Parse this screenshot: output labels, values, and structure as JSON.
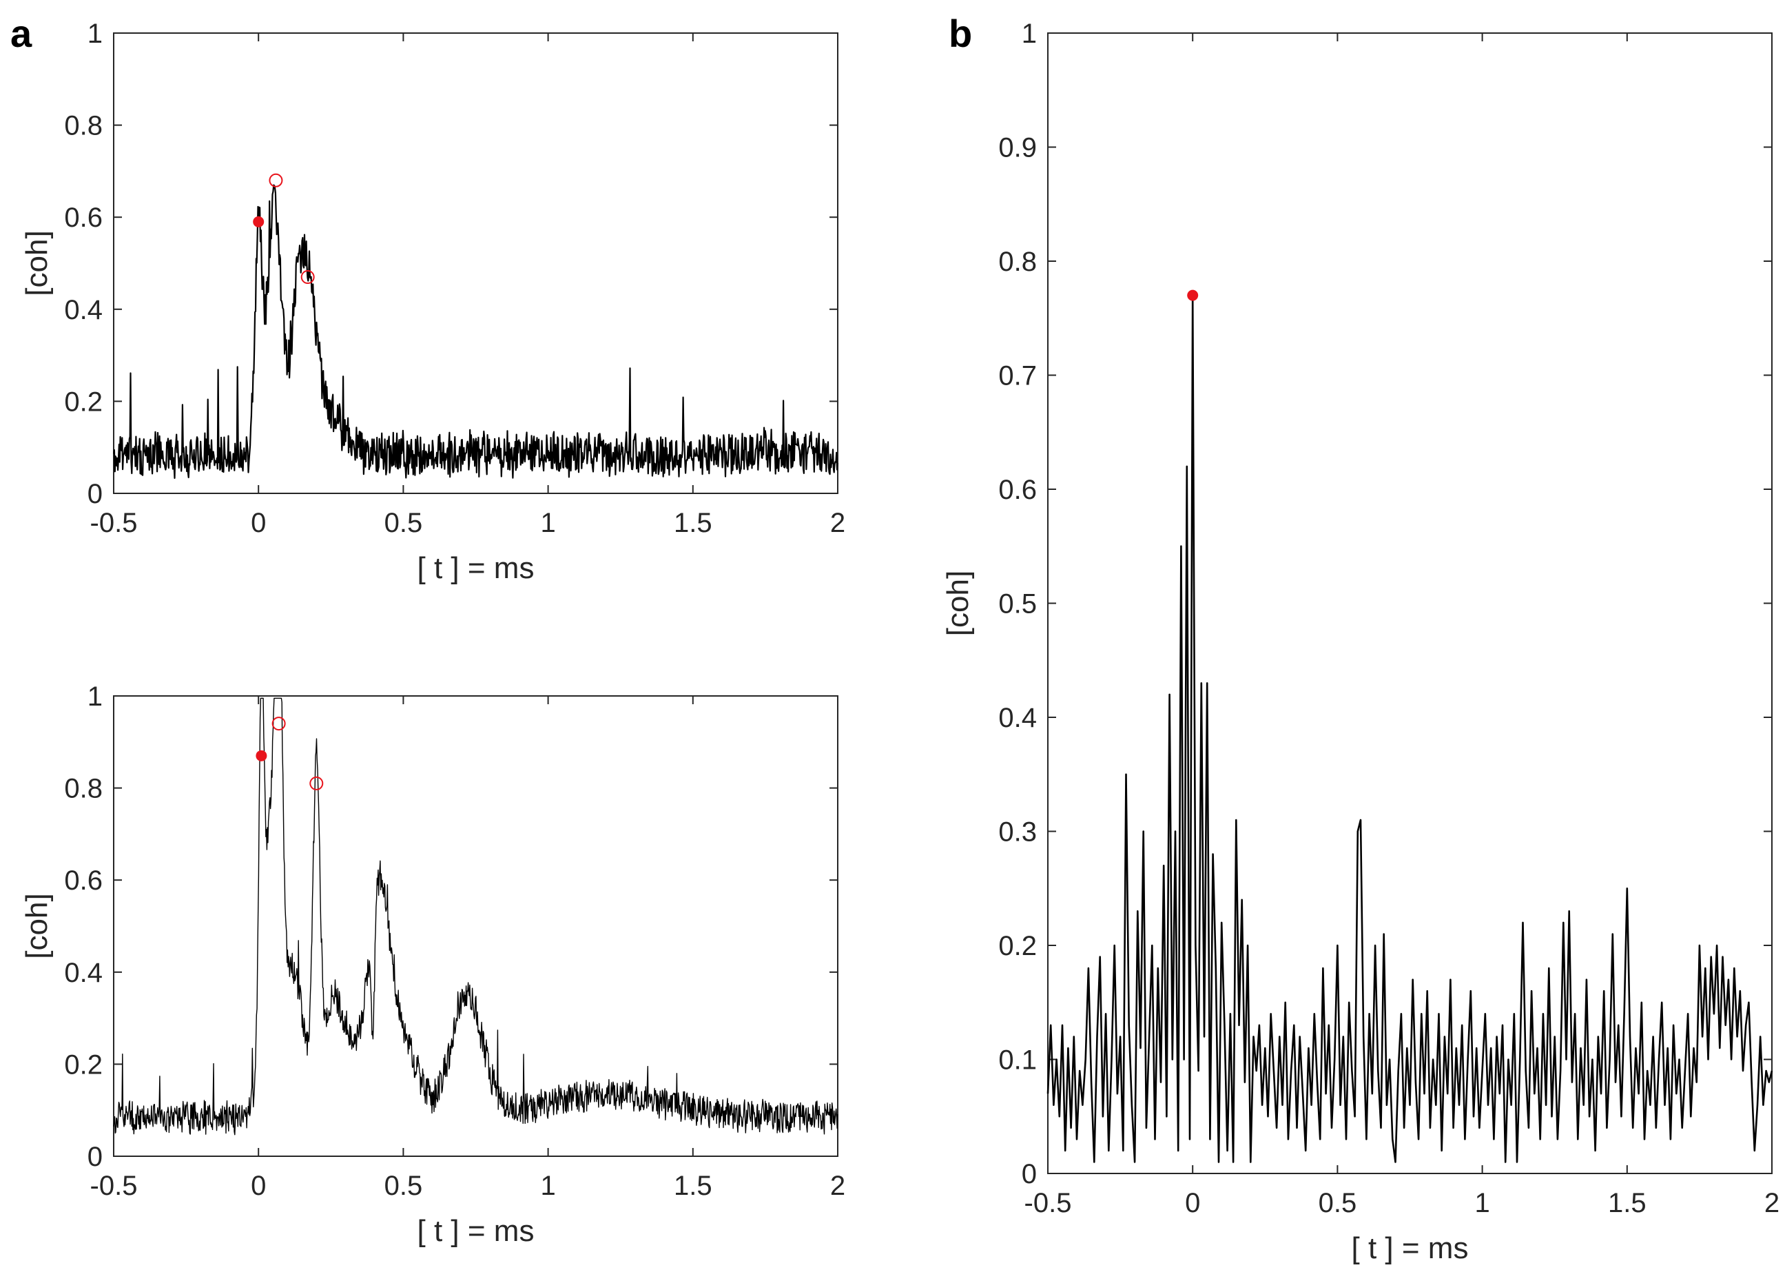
{
  "panels": {
    "a": "a",
    "b": "b"
  },
  "chart_data": [
    {
      "id": "a-top",
      "panel": "a",
      "type": "line",
      "title": "",
      "xlabel": "[ t ] = ms",
      "ylabel": "[coh]",
      "xlim": [
        -0.5,
        2
      ],
      "ylim": [
        0,
        1
      ],
      "xticks": [
        -0.5,
        0,
        0.5,
        1,
        1.5,
        2
      ],
      "xticklabels": [
        "-0.5",
        "0",
        "0.5",
        "1",
        "1.5",
        "2"
      ],
      "yticks": [
        0,
        0.2,
        0.4,
        0.6,
        0.8,
        1
      ],
      "yticklabels": [
        "0",
        "0.2",
        "0.4",
        "0.6",
        "0.8",
        "1"
      ],
      "grid": false,
      "colors": {
        "line": "#000000",
        "marker": "#e8141c"
      },
      "signal": {
        "t_start": -0.5,
        "t_end": 2,
        "n": 1200,
        "baseline": 0.085,
        "noise": 0.055,
        "spike_prob": 0.012,
        "spike_amp": 0.14,
        "seed": 11,
        "peaks": [
          {
            "t": 0.0,
            "amp": 0.48,
            "width": 0.012
          },
          {
            "t": 0.055,
            "amp": 0.55,
            "width": 0.025
          },
          {
            "t": 0.13,
            "amp": 0.24,
            "width": 0.02
          },
          {
            "t": 0.17,
            "amp": 0.35,
            "width": 0.028
          },
          {
            "t": 0.24,
            "amp": 0.09,
            "width": 0.05
          }
        ]
      },
      "markers": [
        {
          "t": 0.0,
          "value": 0.59,
          "filled": true
        },
        {
          "t": 0.06,
          "value": 0.68,
          "filled": false
        },
        {
          "t": 0.17,
          "value": 0.47,
          "filled": false
        }
      ]
    },
    {
      "id": "a-bottom",
      "panel": "a",
      "type": "line",
      "title": "",
      "xlabel": "[ t ] = ms",
      "ylabel": "[coh]",
      "xlim": [
        -0.5,
        2
      ],
      "ylim": [
        0,
        1
      ],
      "xticks": [
        -0.5,
        0,
        0.5,
        1,
        1.5,
        2
      ],
      "xticklabels": [
        "-0.5",
        "0",
        "0.5",
        "1",
        "1.5",
        "2"
      ],
      "yticks": [
        0,
        0.2,
        0.4,
        0.6,
        0.8,
        1
      ],
      "yticklabels": [
        "0",
        "0.2",
        "0.4",
        "0.6",
        "0.8",
        "1"
      ],
      "grid": false,
      "colors": {
        "line": "#000000",
        "marker": "#e8141c"
      },
      "signal": {
        "t_start": -0.5,
        "t_end": 2,
        "n": 1400,
        "baseline": 0.085,
        "noise": 0.04,
        "spike_prob": 0.008,
        "spike_amp": 0.1,
        "seed": 23,
        "peaks": [
          {
            "t": 0.01,
            "amp": 0.72,
            "width": 0.008
          },
          {
            "t": 0.04,
            "amp": 0.62,
            "width": 0.025
          },
          {
            "t": 0.07,
            "amp": 0.82,
            "width": 0.012
          },
          {
            "t": 0.12,
            "amp": 0.32,
            "width": 0.035
          },
          {
            "t": 0.2,
            "amp": 0.68,
            "width": 0.012
          },
          {
            "t": 0.26,
            "amp": 0.25,
            "width": 0.04
          },
          {
            "t": 0.35,
            "amp": 0.12,
            "width": 0.04
          },
          {
            "t": 0.42,
            "amp": 0.45,
            "width": 0.035
          },
          {
            "t": 0.5,
            "amp": 0.16,
            "width": 0.05
          },
          {
            "t": 0.72,
            "amp": 0.26,
            "width": 0.055
          },
          {
            "t": 1.2,
            "amp": 0.05,
            "width": 0.2
          }
        ],
        "dips": [
          {
            "t": 0.395,
            "depth": 0.25,
            "width": 0.006
          }
        ]
      },
      "markers": [
        {
          "t": 0.01,
          "value": 0.87,
          "filled": true
        },
        {
          "t": 0.07,
          "value": 0.94,
          "filled": false
        },
        {
          "t": 0.2,
          "value": 0.81,
          "filled": false
        }
      ]
    },
    {
      "id": "b",
      "panel": "b",
      "type": "line",
      "title": "",
      "xlabel": "[ t ] = ms",
      "ylabel": "[coh]",
      "xlim": [
        -0.5,
        2
      ],
      "ylim": [
        0,
        1
      ],
      "xticks": [
        -0.5,
        0,
        0.5,
        1,
        1.5,
        2
      ],
      "xticklabels": [
        "-0.5",
        "0",
        "0.5",
        "1",
        "1.5",
        "2"
      ],
      "yticks": [
        0,
        0.1,
        0.2,
        0.3,
        0.4,
        0.5,
        0.6,
        0.7,
        0.8,
        0.9,
        1
      ],
      "yticklabels": [
        "0",
        "0.1",
        "0.2",
        "0.3",
        "0.4",
        "0.5",
        "0.6",
        "0.7",
        "0.8",
        "0.9",
        "1"
      ],
      "grid": false,
      "colors": {
        "line": "#000000",
        "marker": "#e8141c"
      },
      "points": [
        [
          -0.5,
          0.07
        ],
        [
          -0.49,
          0.13
        ],
        [
          -0.48,
          0.06
        ],
        [
          -0.47,
          0.1
        ],
        [
          -0.46,
          0.05
        ],
        [
          -0.45,
          0.13
        ],
        [
          -0.44,
          0.02
        ],
        [
          -0.43,
          0.11
        ],
        [
          -0.42,
          0.04
        ],
        [
          -0.41,
          0.12
        ],
        [
          -0.4,
          0.03
        ],
        [
          -0.39,
          0.09
        ],
        [
          -0.38,
          0.06
        ],
        [
          -0.37,
          0.1
        ],
        [
          -0.36,
          0.18
        ],
        [
          -0.35,
          0.08
        ],
        [
          -0.34,
          0.01
        ],
        [
          -0.33,
          0.12
        ],
        [
          -0.32,
          0.19
        ],
        [
          -0.31,
          0.05
        ],
        [
          -0.3,
          0.14
        ],
        [
          -0.29,
          0.02
        ],
        [
          -0.28,
          0.1
        ],
        [
          -0.27,
          0.2
        ],
        [
          -0.26,
          0.07
        ],
        [
          -0.25,
          0.12
        ],
        [
          -0.24,
          0.02
        ],
        [
          -0.23,
          0.35
        ],
        [
          -0.22,
          0.13
        ],
        [
          -0.21,
          0.06
        ],
        [
          -0.2,
          0.01
        ],
        [
          -0.19,
          0.23
        ],
        [
          -0.18,
          0.11
        ],
        [
          -0.17,
          0.3
        ],
        [
          -0.16,
          0.04
        ],
        [
          -0.15,
          0.12
        ],
        [
          -0.14,
          0.2
        ],
        [
          -0.13,
          0.03
        ],
        [
          -0.12,
          0.18
        ],
        [
          -0.11,
          0.08
        ],
        [
          -0.1,
          0.27
        ],
        [
          -0.09,
          0.05
        ],
        [
          -0.08,
          0.42
        ],
        [
          -0.07,
          0.1
        ],
        [
          -0.06,
          0.3
        ],
        [
          -0.05,
          0.02
        ],
        [
          -0.04,
          0.55
        ],
        [
          -0.03,
          0.1
        ],
        [
          -0.02,
          0.62
        ],
        [
          -0.01,
          0.03
        ],
        [
          0.0,
          0.77
        ],
        [
          0.01,
          0.2
        ],
        [
          0.02,
          0.09
        ],
        [
          0.03,
          0.43
        ],
        [
          0.04,
          0.12
        ],
        [
          0.05,
          0.43
        ],
        [
          0.06,
          0.03
        ],
        [
          0.07,
          0.28
        ],
        [
          0.08,
          0.18
        ],
        [
          0.09,
          0.01
        ],
        [
          0.1,
          0.22
        ],
        [
          0.11,
          0.13
        ],
        [
          0.12,
          0.02
        ],
        [
          0.13,
          0.14
        ],
        [
          0.14,
          0.01
        ],
        [
          0.15,
          0.31
        ],
        [
          0.16,
          0.13
        ],
        [
          0.17,
          0.24
        ],
        [
          0.18,
          0.08
        ],
        [
          0.19,
          0.2
        ],
        [
          0.2,
          0.01
        ],
        [
          0.21,
          0.12
        ],
        [
          0.22,
          0.09
        ],
        [
          0.23,
          0.13
        ],
        [
          0.24,
          0.06
        ],
        [
          0.25,
          0.11
        ],
        [
          0.26,
          0.05
        ],
        [
          0.27,
          0.14
        ],
        [
          0.28,
          0.09
        ],
        [
          0.29,
          0.04
        ],
        [
          0.3,
          0.12
        ],
        [
          0.31,
          0.06
        ],
        [
          0.32,
          0.15
        ],
        [
          0.33,
          0.03
        ],
        [
          0.34,
          0.09
        ],
        [
          0.35,
          0.13
        ],
        [
          0.36,
          0.04
        ],
        [
          0.37,
          0.12
        ],
        [
          0.38,
          0.07
        ],
        [
          0.39,
          0.02
        ],
        [
          0.4,
          0.11
        ],
        [
          0.41,
          0.06
        ],
        [
          0.42,
          0.14
        ],
        [
          0.43,
          0.08
        ],
        [
          0.44,
          0.03
        ],
        [
          0.45,
          0.18
        ],
        [
          0.46,
          0.07
        ],
        [
          0.47,
          0.13
        ],
        [
          0.48,
          0.04
        ],
        [
          0.49,
          0.1
        ],
        [
          0.5,
          0.2
        ],
        [
          0.51,
          0.06
        ],
        [
          0.52,
          0.12
        ],
        [
          0.53,
          0.03
        ],
        [
          0.54,
          0.15
        ],
        [
          0.55,
          0.09
        ],
        [
          0.56,
          0.05
        ],
        [
          0.57,
          0.3
        ],
        [
          0.58,
          0.31
        ],
        [
          0.59,
          0.12
        ],
        [
          0.6,
          0.03
        ],
        [
          0.61,
          0.14
        ],
        [
          0.62,
          0.07
        ],
        [
          0.63,
          0.2
        ],
        [
          0.64,
          0.09
        ],
        [
          0.65,
          0.04
        ],
        [
          0.66,
          0.21
        ],
        [
          0.67,
          0.06
        ],
        [
          0.68,
          0.1
        ],
        [
          0.69,
          0.03
        ],
        [
          0.7,
          0.01
        ],
        [
          0.71,
          0.09
        ],
        [
          0.72,
          0.14
        ],
        [
          0.73,
          0.04
        ],
        [
          0.74,
          0.11
        ],
        [
          0.75,
          0.06
        ],
        [
          0.76,
          0.17
        ],
        [
          0.77,
          0.08
        ],
        [
          0.78,
          0.03
        ],
        [
          0.79,
          0.14
        ],
        [
          0.8,
          0.07
        ],
        [
          0.81,
          0.16
        ],
        [
          0.82,
          0.04
        ],
        [
          0.83,
          0.1
        ],
        [
          0.84,
          0.06
        ],
        [
          0.85,
          0.14
        ],
        [
          0.86,
          0.02
        ],
        [
          0.87,
          0.12
        ],
        [
          0.88,
          0.07
        ],
        [
          0.89,
          0.17
        ],
        [
          0.9,
          0.04
        ],
        [
          0.91,
          0.11
        ],
        [
          0.92,
          0.06
        ],
        [
          0.93,
          0.13
        ],
        [
          0.94,
          0.03
        ],
        [
          0.95,
          0.1
        ],
        [
          0.96,
          0.16
        ],
        [
          0.97,
          0.05
        ],
        [
          0.98,
          0.11
        ],
        [
          0.99,
          0.04
        ],
        [
          1.0,
          0.09
        ],
        [
          1.01,
          0.14
        ],
        [
          1.02,
          0.06
        ],
        [
          1.03,
          0.11
        ],
        [
          1.04,
          0.03
        ],
        [
          1.05,
          0.12
        ],
        [
          1.06,
          0.07
        ],
        [
          1.07,
          0.13
        ],
        [
          1.08,
          0.01
        ],
        [
          1.09,
          0.1
        ],
        [
          1.1,
          0.06
        ],
        [
          1.11,
          0.14
        ],
        [
          1.12,
          0.01
        ],
        [
          1.13,
          0.1
        ],
        [
          1.14,
          0.22
        ],
        [
          1.15,
          0.09
        ],
        [
          1.16,
          0.04
        ],
        [
          1.17,
          0.16
        ],
        [
          1.18,
          0.07
        ],
        [
          1.19,
          0.11
        ],
        [
          1.2,
          0.03
        ],
        [
          1.21,
          0.14
        ],
        [
          1.22,
          0.06
        ],
        [
          1.23,
          0.18
        ],
        [
          1.24,
          0.05
        ],
        [
          1.25,
          0.12
        ],
        [
          1.26,
          0.03
        ],
        [
          1.27,
          0.09
        ],
        [
          1.28,
          0.22
        ],
        [
          1.29,
          0.1
        ],
        [
          1.3,
          0.23
        ],
        [
          1.31,
          0.08
        ],
        [
          1.32,
          0.14
        ],
        [
          1.33,
          0.03
        ],
        [
          1.34,
          0.11
        ],
        [
          1.35,
          0.06
        ],
        [
          1.36,
          0.17
        ],
        [
          1.37,
          0.05
        ],
        [
          1.38,
          0.1
        ],
        [
          1.39,
          0.02
        ],
        [
          1.4,
          0.12
        ],
        [
          1.41,
          0.07
        ],
        [
          1.42,
          0.16
        ],
        [
          1.43,
          0.04
        ],
        [
          1.44,
          0.1
        ],
        [
          1.45,
          0.21
        ],
        [
          1.46,
          0.08
        ],
        [
          1.47,
          0.13
        ],
        [
          1.48,
          0.05
        ],
        [
          1.49,
          0.14
        ],
        [
          1.5,
          0.25
        ],
        [
          1.51,
          0.12
        ],
        [
          1.52,
          0.04
        ],
        [
          1.53,
          0.11
        ],
        [
          1.54,
          0.07
        ],
        [
          1.55,
          0.15
        ],
        [
          1.56,
          0.03
        ],
        [
          1.57,
          0.09
        ],
        [
          1.58,
          0.06
        ],
        [
          1.59,
          0.12
        ],
        [
          1.6,
          0.04
        ],
        [
          1.61,
          0.1
        ],
        [
          1.62,
          0.15
        ],
        [
          1.63,
          0.06
        ],
        [
          1.64,
          0.11
        ],
        [
          1.65,
          0.03
        ],
        [
          1.66,
          0.13
        ],
        [
          1.67,
          0.07
        ],
        [
          1.68,
          0.1
        ],
        [
          1.69,
          0.04
        ],
        [
          1.7,
          0.09
        ],
        [
          1.71,
          0.14
        ],
        [
          1.72,
          0.05
        ],
        [
          1.73,
          0.11
        ],
        [
          1.74,
          0.08
        ],
        [
          1.75,
          0.2
        ],
        [
          1.76,
          0.12
        ],
        [
          1.77,
          0.18
        ],
        [
          1.78,
          0.1
        ],
        [
          1.79,
          0.19
        ],
        [
          1.8,
          0.14
        ],
        [
          1.81,
          0.2
        ],
        [
          1.82,
          0.11
        ],
        [
          1.83,
          0.19
        ],
        [
          1.84,
          0.13
        ],
        [
          1.85,
          0.17
        ],
        [
          1.86,
          0.1
        ],
        [
          1.87,
          0.18
        ],
        [
          1.88,
          0.12
        ],
        [
          1.89,
          0.16
        ],
        [
          1.9,
          0.09
        ],
        [
          1.91,
          0.13
        ],
        [
          1.92,
          0.15
        ],
        [
          1.93,
          0.08
        ],
        [
          1.94,
          0.02
        ],
        [
          1.95,
          0.06
        ],
        [
          1.96,
          0.12
        ],
        [
          1.97,
          0.06
        ],
        [
          1.98,
          0.09
        ],
        [
          1.99,
          0.08
        ],
        [
          2.0,
          0.09
        ]
      ],
      "markers": [
        {
          "t": 0.0,
          "value": 0.77,
          "filled": true
        }
      ]
    }
  ]
}
